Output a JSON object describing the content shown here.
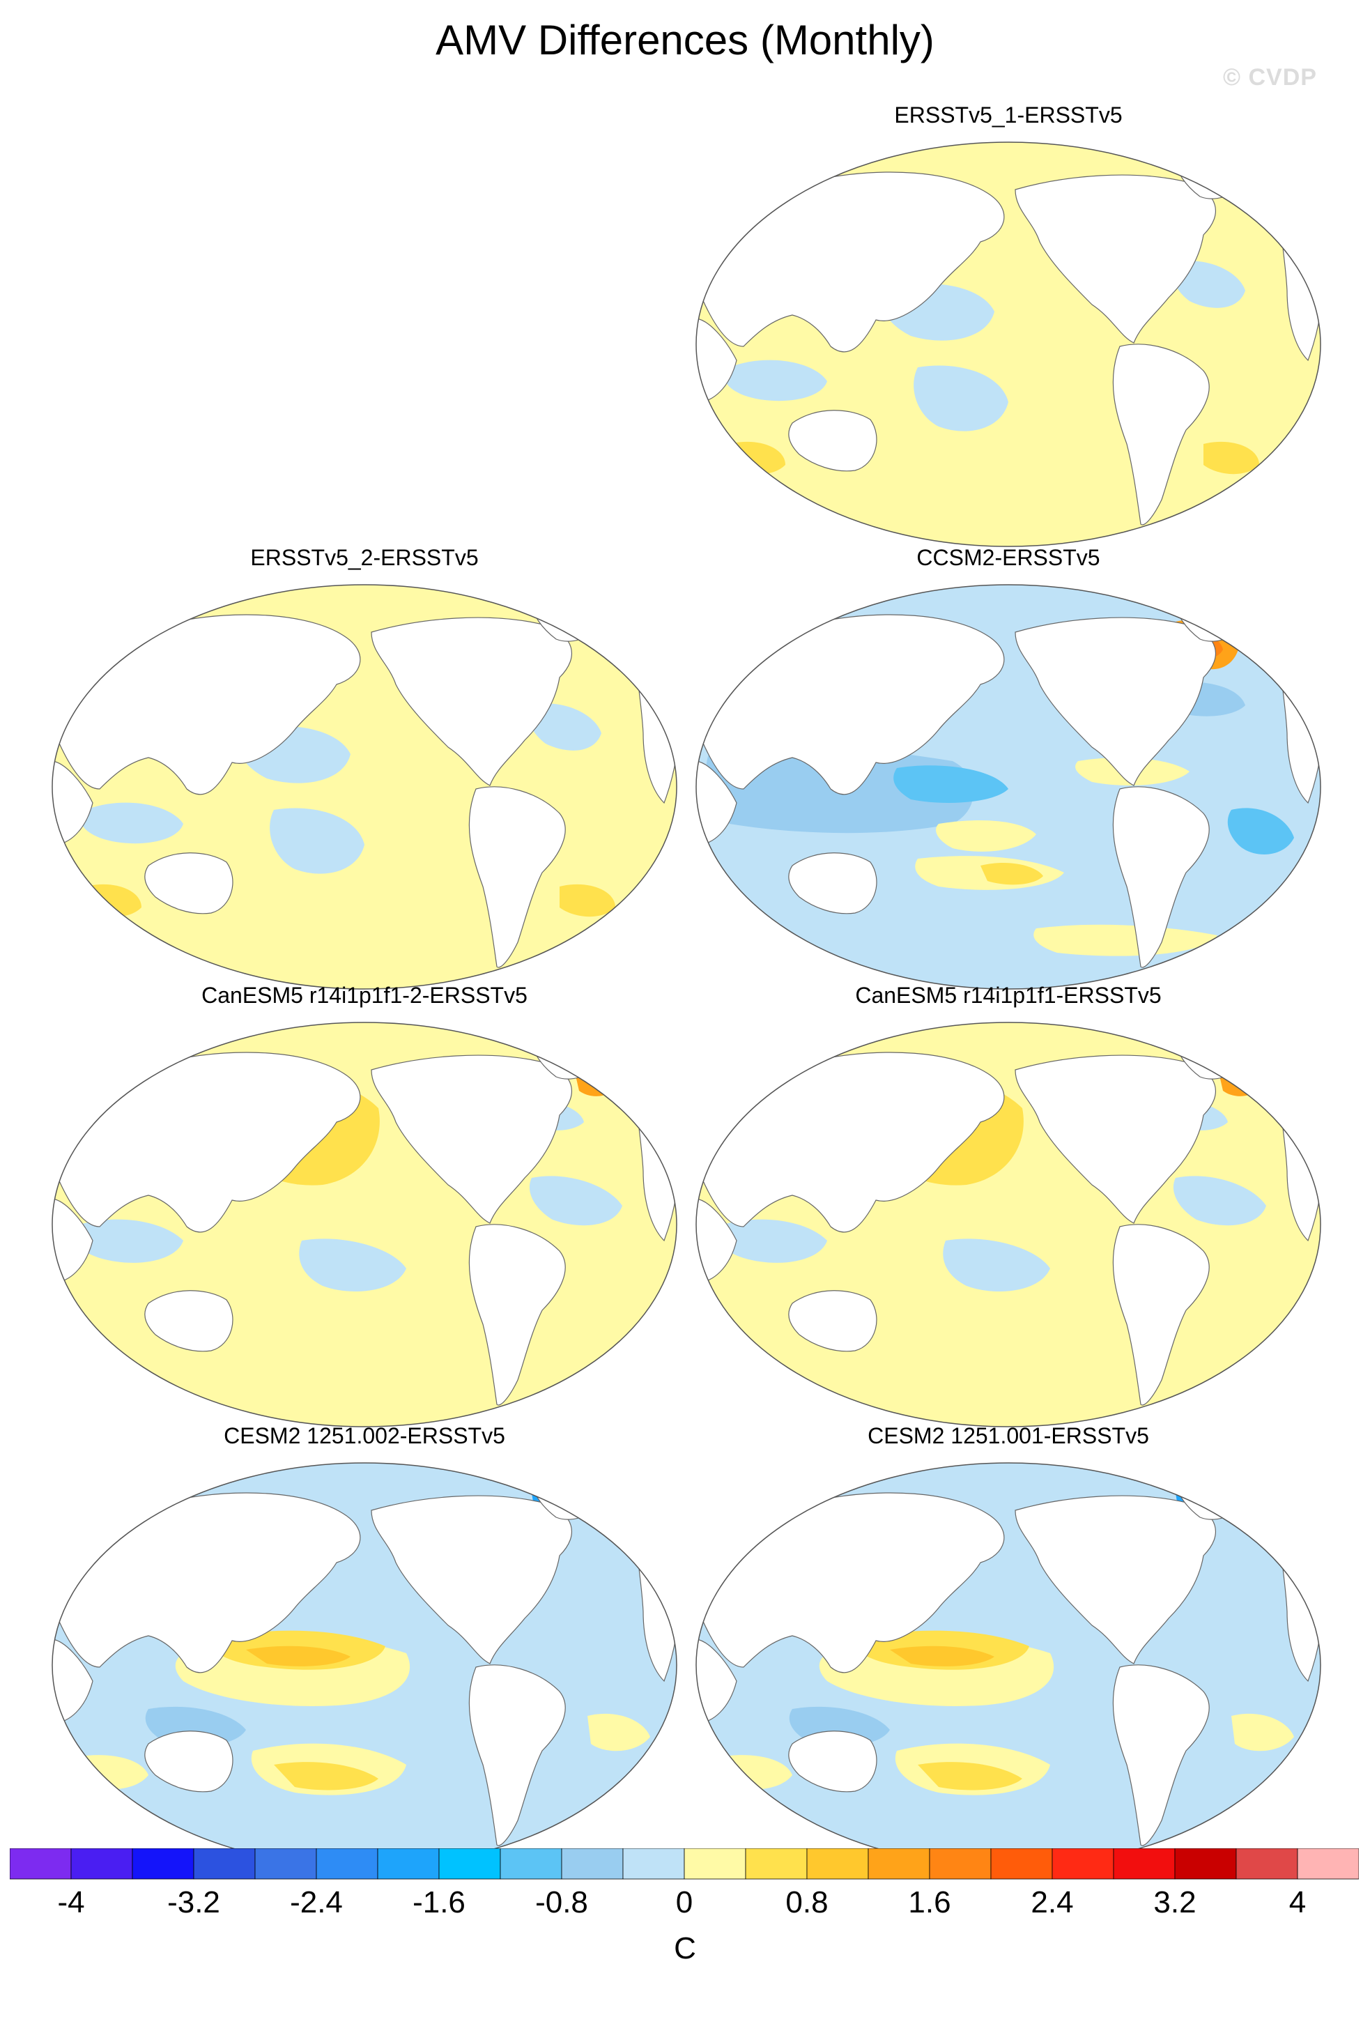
{
  "title": "AMV Differences (Monthly)",
  "watermark": "© CVDP",
  "colorbar": {
    "unit": "C",
    "tick_labels": [
      "-4",
      "-3.2",
      "-2.4",
      "-1.6",
      "-0.8",
      "0",
      "0.8",
      "1.6",
      "2.4",
      "3.2",
      "4"
    ],
    "colors": [
      "#7d2bf0",
      "#4a1ef2",
      "#1414fa",
      "#2c52e0",
      "#3a74e6",
      "#2e8cf5",
      "#1ea4fb",
      "#00c2ff",
      "#5cc4f5",
      "#99cdf0",
      "#bfe2f7",
      "#fffaa6",
      "#ffe14d",
      "#ffc82d",
      "#ffa319",
      "#ff8514",
      "#ff5c0a",
      "#ff2a14",
      "#f20e0e",
      "#c90000",
      "#e04848",
      "#ffb4b4"
    ]
  },
  "panels": [
    {
      "id": "ersstv5_1",
      "title": "ERSSTv5_1-ERSSTv5",
      "pattern": "weak"
    },
    {
      "id": "ersstv5_2",
      "title": "ERSSTv5_2-ERSSTv5",
      "pattern": "weak"
    },
    {
      "id": "ccsm2",
      "title": "CCSM2-ERSSTv5",
      "pattern": "cold"
    },
    {
      "id": "canesm5_2",
      "title": "CanESM5 r14i1p1f1-2-ERSSTv5",
      "pattern": "warm"
    },
    {
      "id": "canesm5_1",
      "title": "CanESM5 r14i1p1f1-ERSSTv5",
      "pattern": "warm"
    },
    {
      "id": "cesm2_002",
      "title": "CESM2 1251.002-ERSSTv5",
      "pattern": "mixed"
    },
    {
      "id": "cesm2_001",
      "title": "CESM2 1251.001-ERSSTv5",
      "pattern": "mixed"
    }
  ]
}
